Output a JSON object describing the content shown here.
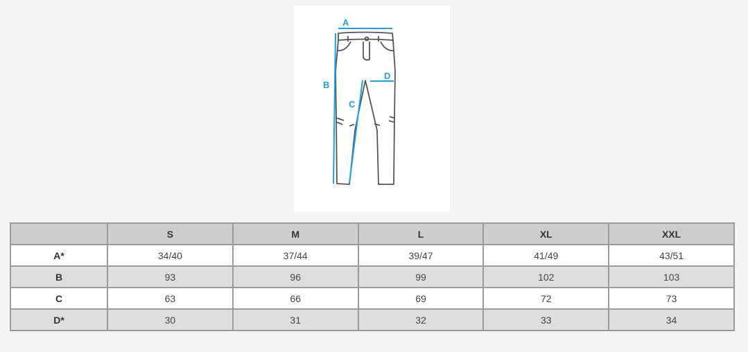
{
  "diagram": {
    "labels": [
      "A",
      "B",
      "C",
      "D"
    ],
    "accent_color": "#1ea0f0"
  },
  "table": {
    "headers": [
      "",
      "S",
      "M",
      "L",
      "XL",
      "XXL"
    ],
    "rows": [
      {
        "label": "A*",
        "values": [
          "34/40",
          "37/44",
          "39/47",
          "41/49",
          "43/51"
        ]
      },
      {
        "label": "B",
        "values": [
          "93",
          "96",
          "99",
          "102",
          "103"
        ]
      },
      {
        "label": "C",
        "values": [
          "63",
          "66",
          "69",
          "72",
          "73"
        ]
      },
      {
        "label": "D*",
        "values": [
          "30",
          "31",
          "32",
          "33",
          "34"
        ]
      }
    ]
  }
}
